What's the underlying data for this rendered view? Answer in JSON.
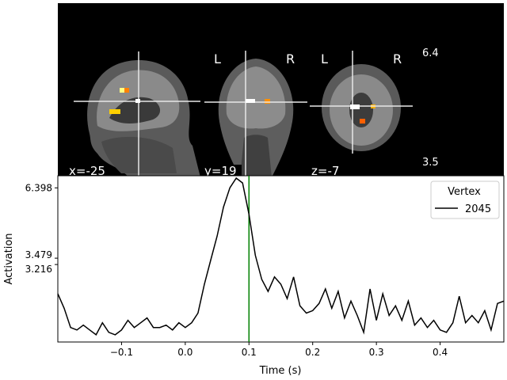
{
  "brain": {
    "coords": {
      "x": "x=-25",
      "y": "y=19",
      "z": "z=-7"
    },
    "orientation_labels": {
      "coronal_left": "L",
      "coronal_right": "R",
      "axial_left": "L",
      "axial_right": "R"
    },
    "colorbar": {
      "max_label": "6.4",
      "min_label": "3.5",
      "colormap": [
        "#ff0000",
        "#ff8000",
        "#ffff00",
        "#ffffe0"
      ]
    }
  },
  "chart_data": {
    "type": "line",
    "xlabel": "Time (s)",
    "ylabel": "Activation",
    "xlim": [
      -0.2,
      0.5
    ],
    "ylim": [
      0.0,
      6.9
    ],
    "xticks": [
      -0.1,
      0.0,
      0.1,
      0.2,
      0.3,
      0.4
    ],
    "xtick_labels": [
      "−0.1",
      "0.0",
      "0.1",
      "0.2",
      "0.3",
      "0.4"
    ],
    "yticks": [
      6.398,
      3.479,
      3.216
    ],
    "ytick_labels": [
      "6.398",
      "3.479",
      "3.216"
    ],
    "vline": {
      "x": 0.1,
      "color": "#008000"
    },
    "legend": {
      "title": "Vertex",
      "position": "top-right"
    },
    "series": [
      {
        "name": "2045",
        "color": "#000000",
        "x": [
          -0.2,
          -0.19,
          -0.18,
          -0.17,
          -0.16,
          -0.15,
          -0.14,
          -0.13,
          -0.12,
          -0.11,
          -0.1,
          -0.09,
          -0.08,
          -0.07,
          -0.06,
          -0.05,
          -0.04,
          -0.03,
          -0.02,
          -0.01,
          0.0,
          0.01,
          0.02,
          0.03,
          0.04,
          0.05,
          0.06,
          0.07,
          0.08,
          0.09,
          0.1,
          0.11,
          0.12,
          0.13,
          0.14,
          0.15,
          0.16,
          0.17,
          0.18,
          0.19,
          0.2,
          0.21,
          0.22,
          0.23,
          0.24,
          0.25,
          0.26,
          0.27,
          0.28,
          0.29,
          0.3,
          0.31,
          0.32,
          0.33,
          0.34,
          0.35,
          0.36,
          0.37,
          0.38,
          0.39,
          0.4,
          0.41,
          0.42,
          0.43,
          0.44,
          0.45,
          0.46,
          0.47,
          0.48,
          0.49,
          0.5
        ],
        "y": [
          2.0,
          1.4,
          0.6,
          0.5,
          0.7,
          0.5,
          0.3,
          0.8,
          0.4,
          0.3,
          0.5,
          0.9,
          0.6,
          0.8,
          1.0,
          0.6,
          0.6,
          0.7,
          0.5,
          0.8,
          0.6,
          0.8,
          1.2,
          2.4,
          3.4,
          4.4,
          5.6,
          6.4,
          6.8,
          6.6,
          5.3,
          3.6,
          2.6,
          2.1,
          2.7,
          2.4,
          1.8,
          2.7,
          1.5,
          1.2,
          1.3,
          1.6,
          2.2,
          1.4,
          2.1,
          1.0,
          1.7,
          1.1,
          0.4,
          2.2,
          0.9,
          2.0,
          1.1,
          1.5,
          0.9,
          1.7,
          0.7,
          1.0,
          0.6,
          0.9,
          0.5,
          0.4,
          0.8,
          1.9,
          0.8,
          1.1,
          0.8,
          1.3,
          0.5,
          1.6,
          1.7
        ]
      }
    ]
  }
}
